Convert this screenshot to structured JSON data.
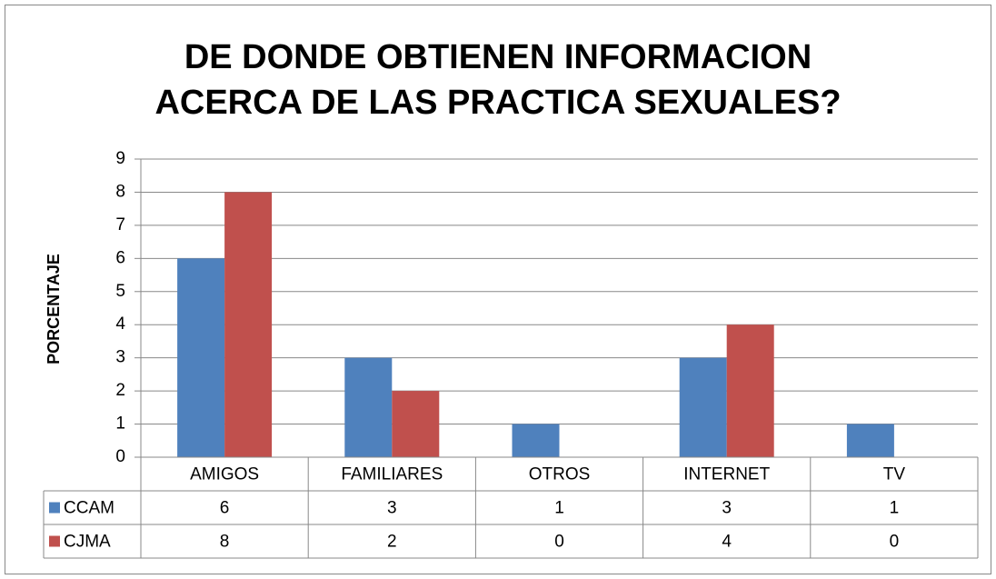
{
  "chart_data": {
    "type": "bar",
    "title": "DE DONDE OBTIENEN INFORMACION ACERCA DE LAS PRACTICA SEXUALES?",
    "y_label": "PORCENTAJE",
    "categories": [
      "AMIGOS",
      "FAMILIARES",
      "OTROS",
      "INTERNET",
      "TV"
    ],
    "series": [
      {
        "name": "CCAM",
        "color": "#4f81bd",
        "values": [
          6,
          3,
          1,
          3,
          1
        ]
      },
      {
        "name": "CJMA",
        "color": "#c0504d",
        "values": [
          8,
          2,
          0,
          4,
          0
        ]
      }
    ],
    "ylim": [
      0,
      9
    ],
    "yticks": [
      0,
      1,
      2,
      3,
      4,
      5,
      6,
      7,
      8,
      9
    ],
    "grid": true
  }
}
